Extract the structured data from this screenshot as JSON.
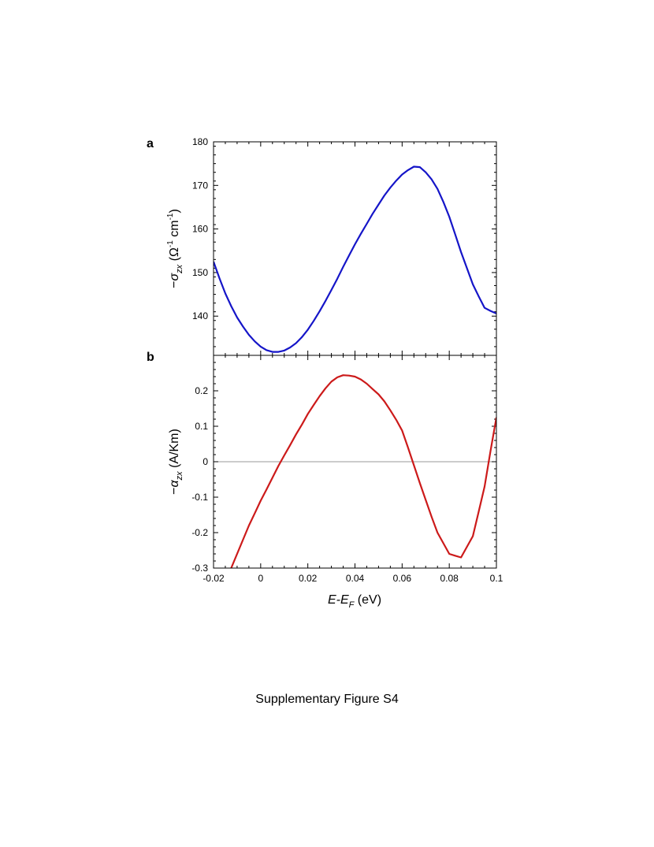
{
  "caption": "Supplementary Figure S4",
  "chart_data": [
    {
      "type": "line",
      "panel_label": "a",
      "ylabel": "−σzx (Ω-1 cm-1)",
      "xlim": [
        -0.02,
        0.1
      ],
      "ylim": [
        131,
        180
      ],
      "yticks": [
        "140",
        "150",
        "160",
        "170",
        "180"
      ],
      "grid": false,
      "color": "#1515c8",
      "x": [
        -0.02,
        -0.0175,
        -0.015,
        -0.0125,
        -0.01,
        -0.0075,
        -0.005,
        -0.0025,
        0.0,
        0.0025,
        0.005,
        0.0075,
        0.01,
        0.0125,
        0.015,
        0.0175,
        0.02,
        0.0225,
        0.025,
        0.0275,
        0.03,
        0.0325,
        0.035,
        0.0375,
        0.04,
        0.0425,
        0.045,
        0.0475,
        0.05,
        0.0525,
        0.055,
        0.0575,
        0.06,
        0.0625,
        0.065,
        0.0675,
        0.07,
        0.0725,
        0.075,
        0.0775,
        0.08,
        0.0825,
        0.085,
        0.0875,
        0.09,
        0.0925,
        0.095,
        0.0975,
        0.1
      ],
      "y": [
        152.5,
        148.7,
        145.2,
        142.3,
        139.7,
        137.6,
        135.7,
        134.2,
        133.0,
        132.2,
        131.8,
        131.8,
        132.1,
        132.8,
        133.8,
        135.2,
        136.9,
        138.9,
        141.1,
        143.5,
        146.0,
        148.6,
        151.3,
        153.9,
        156.5,
        158.9,
        161.2,
        163.5,
        165.6,
        167.7,
        169.5,
        171.1,
        172.5,
        173.5,
        174.3,
        174.2,
        173.0,
        171.4,
        169.2,
        166.2,
        162.8,
        158.8,
        154.7,
        151.0,
        147.3,
        144.5,
        141.9,
        141.2,
        140.6
      ]
    },
    {
      "type": "line",
      "panel_label": "b",
      "ylabel": "−αzx (A/Km)",
      "xlabel": "E-EF (eV)",
      "xlim": [
        -0.02,
        0.1
      ],
      "ylim": [
        -0.3,
        0.3
      ],
      "xticks": [
        "-0.02",
        "0",
        "0.02",
        "0.04",
        "0.06",
        "0.08",
        "0.1"
      ],
      "yticks": [
        "-0.3",
        "-0.2",
        "-0.1",
        "0",
        "0.1",
        "0.2"
      ],
      "grid": false,
      "zero_line": true,
      "color": "#cc1a1a",
      "x": [
        -0.0125,
        -0.01,
        -0.0075,
        -0.005,
        -0.0025,
        0.0,
        0.0025,
        0.005,
        0.0075,
        0.01,
        0.0125,
        0.015,
        0.0175,
        0.02,
        0.0225,
        0.025,
        0.0275,
        0.03,
        0.0325,
        0.035,
        0.0375,
        0.04,
        0.0425,
        0.045,
        0.0475,
        0.05,
        0.0525,
        0.055,
        0.0575,
        0.06,
        0.0625,
        0.065,
        0.0675,
        0.07,
        0.0725,
        0.075,
        0.0775,
        0.08,
        0.0825,
        0.085,
        0.0875,
        0.09,
        0.0925,
        0.095,
        0.0975,
        0.1
      ],
      "y": [
        -0.3,
        -0.26,
        -0.22,
        -0.18,
        -0.145,
        -0.11,
        -0.078,
        -0.045,
        -0.012,
        0.018,
        0.047,
        0.077,
        0.105,
        0.135,
        0.16,
        0.185,
        0.207,
        0.226,
        0.238,
        0.244,
        0.243,
        0.24,
        0.232,
        0.22,
        0.205,
        0.19,
        0.17,
        0.145,
        0.118,
        0.088,
        0.04,
        -0.01,
        -0.06,
        -0.108,
        -0.155,
        -0.2,
        -0.23,
        -0.26,
        -0.265,
        -0.27,
        -0.24,
        -0.21,
        -0.14,
        -0.07,
        0.03,
        0.125
      ]
    }
  ]
}
